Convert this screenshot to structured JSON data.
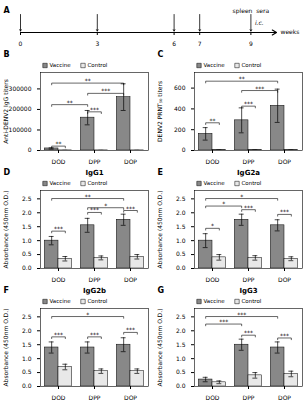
{
  "chart_data": [
    {
      "type": "timeline",
      "xlabel": "weeks",
      "xlim": [
        0,
        10
      ],
      "xticks": [
        0,
        3,
        6,
        7,
        9
      ],
      "injections": [
        0,
        3,
        6,
        7
      ],
      "sampling": [
        9
      ],
      "annotations": [
        {
          "text": "A"
        },
        {
          "text": "spleen  sera",
          "x": 9
        },
        {
          "text": "i.c.",
          "x": 9
        }
      ]
    },
    {
      "type": "bar",
      "ylabel": "Anti-DENV2 IgG titers",
      "categories": [
        "DOD",
        "DPP",
        "DOP"
      ],
      "series": [
        {
          "name": "Vaccine",
          "color": "#888888",
          "values": [
            10000,
            160000,
            260000
          ],
          "errors": [
            3000,
            35000,
            65000
          ]
        },
        {
          "name": "Control",
          "color": "#e8e8e8",
          "values": [
            500,
            500,
            500
          ],
          "errors": [
            200,
            200,
            200
          ]
        }
      ],
      "ylim": [
        0,
        380000
      ],
      "yticks": [
        0,
        100000,
        200000,
        300000
      ],
      "legend": "upper left",
      "annotations": [
        {
          "text": "B"
        },
        {
          "text": "**",
          "y": 13000,
          "from": {
            "category": "DOD",
            "series": "Vaccine"
          },
          "to": {
            "category": "DOD",
            "series": "Control"
          }
        },
        {
          "text": "**",
          "y": 320000,
          "from": {
            "category": "DOD",
            "series": "Vaccine"
          },
          "to": {
            "category": "DOP",
            "series": "Vaccine"
          }
        },
        {
          "text": "**",
          "y": 215000,
          "from": {
            "category": "DOD",
            "series": "Vaccine"
          },
          "to": {
            "category": "DPP",
            "series": "Vaccine"
          }
        },
        {
          "text": "***",
          "y": 270000,
          "from": {
            "category": "DPP",
            "series": "Vaccine"
          },
          "to": {
            "category": "DOP",
            "series": "Vaccine"
          }
        },
        {
          "text": "***",
          "y": 180000,
          "from": {
            "category": "DPP",
            "series": "Vaccine"
          },
          "to": {
            "category": "DPP",
            "series": "Control"
          }
        }
      ]
    },
    {
      "type": "bar",
      "ylabel": "DENV2 PRNT₅₀ titers",
      "categories": [
        "DOD",
        "DPP",
        "DOP"
      ],
      "series": [
        {
          "name": "Vaccine",
          "color": "#888888",
          "values": [
            160,
            290,
            430
          ],
          "errors": [
            60,
            120,
            160
          ]
        },
        {
          "name": "Control",
          "color": "#e8e8e8",
          "values": [
            3,
            3,
            3
          ],
          "errors": [
            1,
            1,
            1
          ]
        }
      ],
      "ylim": [
        0,
        750
      ],
      "yticks": [
        0,
        200,
        400,
        600
      ],
      "legend": "upper left",
      "annotations": [
        {
          "text": "C"
        },
        {
          "text": "**",
          "y": 250,
          "from": {
            "category": "DOD",
            "series": "Vaccine"
          },
          "to": {
            "category": "DOD",
            "series": "Control"
          }
        },
        {
          "text": "**",
          "y": 650,
          "from": {
            "category": "DOD",
            "series": "Vaccine"
          },
          "to": {
            "category": "DOP",
            "series": "Vaccine"
          }
        },
        {
          "text": "***",
          "y": 560,
          "from": {
            "category": "DPP",
            "series": "Vaccine"
          },
          "to": {
            "category": "DOP",
            "series": "Vaccine"
          }
        },
        {
          "text": "***",
          "y": 410,
          "from": {
            "category": "DPP",
            "series": "Vaccine"
          },
          "to": {
            "category": "DPP",
            "series": "Control"
          }
        }
      ]
    },
    {
      "type": "bar",
      "title": "IgG1",
      "ylabel": "Absorbance (450nm O.D.)",
      "categories": [
        "DOD",
        "DPP",
        "DOP"
      ],
      "series": [
        {
          "name": "Vaccine",
          "color": "#888888",
          "values": [
            1.0,
            1.55,
            1.75
          ],
          "errors": [
            0.15,
            0.25,
            0.2
          ]
        },
        {
          "name": "Control",
          "color": "#e8e8e8",
          "values": [
            0.35,
            0.38,
            0.42
          ],
          "errors": [
            0.08,
            0.07,
            0.08
          ]
        }
      ],
      "ylim": [
        0,
        2.8
      ],
      "yticks": [
        {
          "value": 0,
          "label": "0.0"
        },
        0.5,
        {
          "value": 1,
          "label": "1.0"
        },
        1.5,
        {
          "value": 2,
          "label": "2.0"
        },
        2.5
      ],
      "legend": "upper left",
      "annotations": [
        {
          "text": "D"
        },
        {
          "text": "***",
          "y": 1.28,
          "from": {
            "category": "DOD",
            "series": "Vaccine"
          },
          "to": {
            "category": "DOD",
            "series": "Control"
          }
        },
        {
          "text": "**",
          "y": 2.45,
          "from": {
            "category": "DOD",
            "series": "Vaccine"
          },
          "to": {
            "category": "DOP",
            "series": "Vaccine"
          }
        },
        {
          "text": "*",
          "y": 2.12,
          "from": {
            "category": "DPP",
            "series": "Vaccine"
          },
          "to": {
            "category": "DOP",
            "series": "Vaccine"
          }
        },
        {
          "text": "***",
          "y": 1.95,
          "from": {
            "category": "DPP",
            "series": "Vaccine"
          },
          "to": {
            "category": "DPP",
            "series": "Control"
          }
        },
        {
          "text": "***",
          "y": 2.02,
          "from": {
            "category": "DOP",
            "series": "Vaccine"
          },
          "to": {
            "category": "DOP",
            "series": "Control"
          }
        }
      ]
    },
    {
      "type": "bar",
      "title": "IgG2a",
      "ylabel": "Absorbance (450nm O.D.)",
      "categories": [
        "DOD",
        "DPP",
        "DOP"
      ],
      "series": [
        {
          "name": "Vaccine",
          "color": "#888888",
          "values": [
            1.0,
            1.75,
            1.55
          ],
          "errors": [
            0.25,
            0.2,
            0.2
          ]
        },
        {
          "name": "Control",
          "color": "#e8e8e8",
          "values": [
            0.4,
            0.38,
            0.35
          ],
          "errors": [
            0.1,
            0.08,
            0.07
          ]
        }
      ],
      "ylim": [
        0,
        2.8
      ],
      "yticks": [
        {
          "value": 0,
          "label": "0.0"
        },
        0.5,
        {
          "value": 1,
          "label": "1.0"
        },
        1.5,
        {
          "value": 2,
          "label": "2.0"
        },
        2.5
      ],
      "legend": "upper left",
      "annotations": [
        {
          "text": "E"
        },
        {
          "text": "*",
          "y": 1.38,
          "from": {
            "category": "DOD",
            "series": "Vaccine"
          },
          "to": {
            "category": "DOD",
            "series": "Control"
          }
        },
        {
          "text": "*",
          "y": 2.45,
          "from": {
            "category": "DOD",
            "series": "Vaccine"
          },
          "to": {
            "category": "DOP",
            "series": "Vaccine"
          }
        },
        {
          "text": "*",
          "y": 2.18,
          "from": {
            "category": "DOD",
            "series": "Vaccine"
          },
          "to": {
            "category": "DPP",
            "series": "Vaccine"
          }
        },
        {
          "text": "***",
          "y": 2.05,
          "from": {
            "category": "DPP",
            "series": "Vaccine"
          },
          "to": {
            "category": "DPP",
            "series": "Control"
          }
        },
        {
          "text": "***",
          "y": 1.88,
          "from": {
            "category": "DOP",
            "series": "Vaccine"
          },
          "to": {
            "category": "DOP",
            "series": "Control"
          }
        }
      ]
    },
    {
      "type": "bar",
      "title": "IgG2b",
      "ylabel": "Absorbance (450nm O.D.)",
      "categories": [
        "DOD",
        "DPP",
        "DOP"
      ],
      "series": [
        {
          "name": "Vaccine",
          "color": "#888888",
          "values": [
            1.4,
            1.4,
            1.5
          ],
          "errors": [
            0.2,
            0.2,
            0.25
          ]
        },
        {
          "name": "Control",
          "color": "#e8e8e8",
          "values": [
            0.7,
            0.55,
            0.55
          ],
          "errors": [
            0.1,
            0.08,
            0.08
          ]
        }
      ],
      "ylim": [
        0,
        2.8
      ],
      "yticks": [
        {
          "value": 0,
          "label": "0.0"
        },
        0.5,
        {
          "value": 1,
          "label": "1.0"
        },
        1.5,
        {
          "value": 2,
          "label": "2.0"
        },
        2.5
      ],
      "legend": "upper left",
      "annotations": [
        {
          "text": "F"
        },
        {
          "text": "***",
          "y": 1.72,
          "from": {
            "category": "DOD",
            "series": "Vaccine"
          },
          "to": {
            "category": "DOD",
            "series": "Control"
          }
        },
        {
          "text": "*",
          "y": 2.45,
          "from": {
            "category": "DOD",
            "series": "Vaccine"
          },
          "to": {
            "category": "DOP",
            "series": "Vaccine"
          }
        },
        {
          "text": "***",
          "y": 1.72,
          "from": {
            "category": "DPP",
            "series": "Vaccine"
          },
          "to": {
            "category": "DPP",
            "series": "Control"
          }
        },
        {
          "text": "***",
          "y": 1.88,
          "from": {
            "category": "DOP",
            "series": "Vaccine"
          },
          "to": {
            "category": "DOP",
            "series": "Control"
          }
        }
      ]
    },
    {
      "type": "bar",
      "title": "IgG3",
      "ylabel": "Absorbance (450nm O.D.)",
      "categories": [
        "DOD",
        "DPP",
        "DOP"
      ],
      "series": [
        {
          "name": "Vaccine",
          "color": "#888888",
          "values": [
            0.25,
            1.5,
            1.4
          ],
          "errors": [
            0.08,
            0.2,
            0.2
          ]
        },
        {
          "name": "Control",
          "color": "#e8e8e8",
          "values": [
            0.15,
            0.4,
            0.45
          ],
          "errors": [
            0.05,
            0.1,
            0.1
          ]
        }
      ],
      "ylim": [
        0,
        2.8
      ],
      "yticks": [
        {
          "value": 0,
          "label": "0.0"
        },
        0.5,
        {
          "value": 1,
          "label": "1.0"
        },
        1.5,
        {
          "value": 2,
          "label": "2.0"
        },
        2.5
      ],
      "legend": "upper left",
      "annotations": [
        {
          "text": "G"
        },
        {
          "text": "***",
          "y": 2.45,
          "from": {
            "category": "DOD",
            "series": "Vaccine"
          },
          "to": {
            "category": "DOP",
            "series": "Vaccine"
          }
        },
        {
          "text": "***",
          "y": 2.18,
          "from": {
            "category": "DOD",
            "series": "Vaccine"
          },
          "to": {
            "category": "DPP",
            "series": "Vaccine"
          }
        },
        {
          "text": "***",
          "y": 1.78,
          "from": {
            "category": "DPP",
            "series": "Vaccine"
          },
          "to": {
            "category": "DPP",
            "series": "Control"
          }
        },
        {
          "text": "***",
          "y": 1.68,
          "from": {
            "category": "DOP",
            "series": "Vaccine"
          },
          "to": {
            "category": "DOP",
            "series": "Control"
          }
        }
      ]
    }
  ]
}
